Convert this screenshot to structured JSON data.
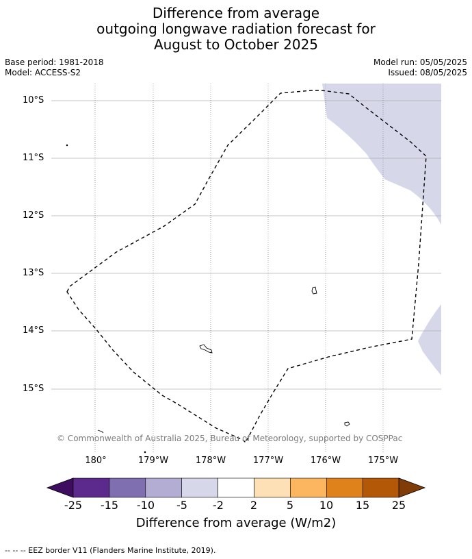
{
  "title": {
    "line1": "Difference from average",
    "line2": "outgoing longwave radiation forecast for",
    "line3": "August to October 2025"
  },
  "meta": {
    "base_period": "Base period: 1981-2018",
    "model": "Model: ACCESS-S2",
    "model_run": "Model run: 05/05/2025",
    "issued": "Issued: 08/05/2025"
  },
  "map": {
    "lat_labels": [
      "10°S",
      "11°S",
      "12°S",
      "13°S",
      "14°S",
      "15°S"
    ],
    "lon_labels": [
      "180°",
      "179°W",
      "178°W",
      "177°W",
      "176°W",
      "175°W"
    ],
    "anomaly_fill_color": "#d7d7ea",
    "eez_line_color": "#000000",
    "copyright": "© Commonwealth of Australia 2025, Bureau of Meteorology, supported by COSPPac"
  },
  "colorbar": {
    "ticks": [
      "-25",
      "-15",
      "-10",
      "-5",
      "-2",
      "2",
      "5",
      "10",
      "15",
      "25"
    ],
    "colors": [
      "#3f0d5f",
      "#5c2a8c",
      "#7f6fb0",
      "#b3add3",
      "#d7d7ea",
      "#ffffff",
      "#fde0b5",
      "#fbb65f",
      "#e0821c",
      "#b35806",
      "#7f3b08"
    ],
    "label": "Difference from average (W/m2)"
  },
  "footnote": "--  --  -- EEZ border V11 (Flanders Marine Institute, 2019)."
}
